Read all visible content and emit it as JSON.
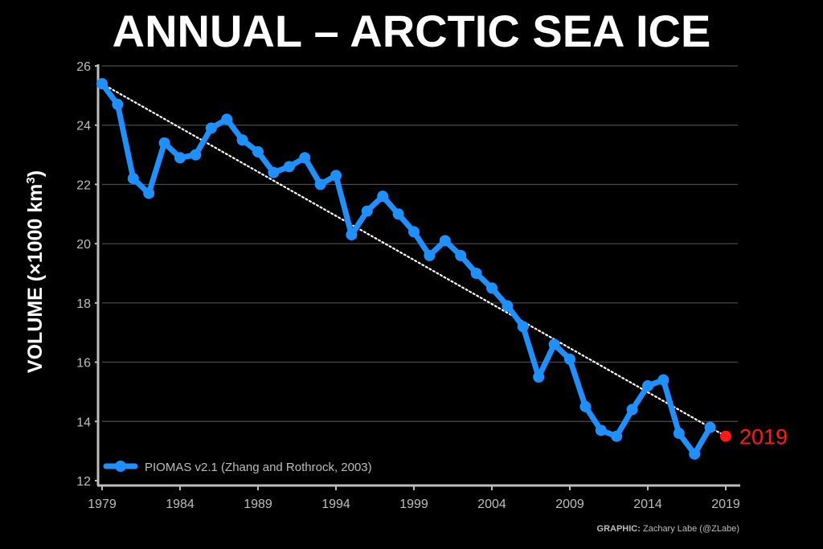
{
  "chart_data": {
    "type": "line",
    "title": "ANNUAL – ARCTIC SEA ICE",
    "ylabel_main": "VOLUME (×1000 km",
    "ylabel_sup": "3",
    "ylabel_close": ")",
    "xlim": [
      1979,
      2019
    ],
    "ylim": [
      12,
      26
    ],
    "x_ticks": [
      1979,
      1984,
      1989,
      1994,
      1999,
      2004,
      2009,
      2014,
      2019
    ],
    "x_tick_labels": [
      "1979",
      "1984",
      "1989",
      "1994",
      "1999",
      "2004",
      "2009",
      "2014",
      "2019"
    ],
    "y_ticks": [
      12,
      14,
      16,
      18,
      20,
      22,
      24,
      26
    ],
    "y_tick_labels": [
      "12",
      "14",
      "16",
      "18",
      "20",
      "22",
      "24",
      "26"
    ],
    "grid": "horizontal",
    "legend_position": "bottom-left",
    "series": [
      {
        "name": "PIOMAS v2.1 (Zhang and Rothrock, 2003)",
        "color": "#1e90ff",
        "x": [
          1979,
          1980,
          1981,
          1982,
          1983,
          1984,
          1985,
          1986,
          1987,
          1988,
          1989,
          1990,
          1991,
          1992,
          1993,
          1994,
          1995,
          1996,
          1997,
          1998,
          1999,
          2000,
          2001,
          2002,
          2003,
          2004,
          2005,
          2006,
          2007,
          2008,
          2009,
          2010,
          2011,
          2012,
          2013,
          2014,
          2015,
          2016,
          2017,
          2018
        ],
        "values": [
          25.4,
          24.7,
          22.2,
          21.7,
          23.4,
          22.9,
          23.0,
          23.9,
          24.2,
          23.5,
          23.1,
          22.4,
          22.6,
          22.9,
          22.0,
          22.3,
          20.3,
          21.1,
          21.6,
          21.0,
          20.4,
          19.6,
          20.1,
          19.6,
          19.0,
          18.5,
          17.9,
          17.2,
          15.5,
          16.6,
          16.1,
          14.5,
          13.7,
          13.5,
          14.4,
          15.2,
          15.4,
          13.6,
          12.9,
          13.8
        ]
      }
    ],
    "trend": {
      "x": [
        1979,
        2019
      ],
      "values": [
        25.4,
        13.5
      ],
      "style": "dotted",
      "color": "#ffffff"
    },
    "highlight": {
      "x": 2019,
      "value": 13.5,
      "label": "2019",
      "color": "#ff1a1a"
    }
  },
  "credit": {
    "prefix": "GRAPHIC:",
    "text": "Zachary Labe (@ZLabe)"
  }
}
